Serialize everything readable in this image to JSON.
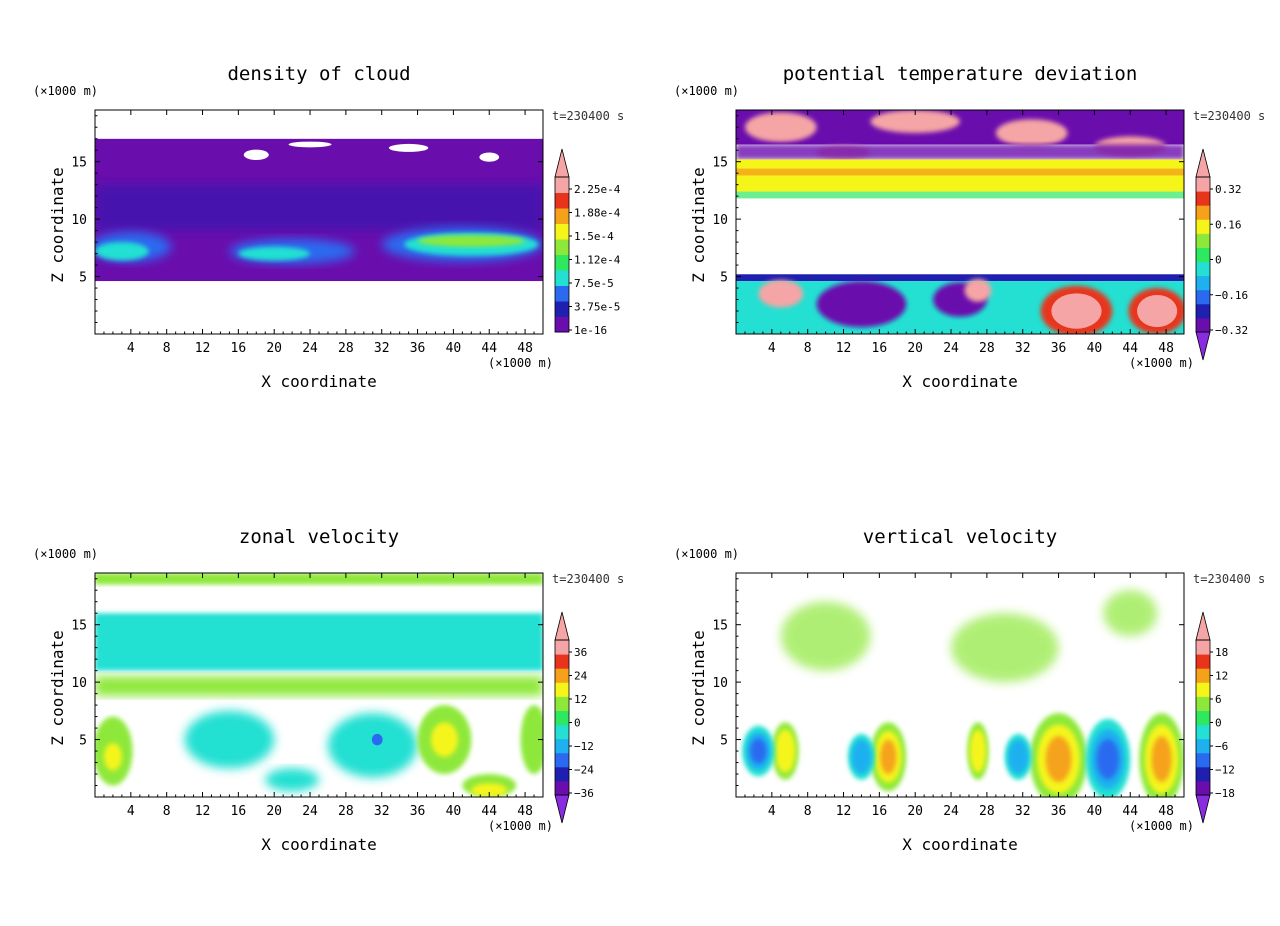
{
  "panels": [
    {
      "title": "density of cloud",
      "xlabel": "X coordinate",
      "ylabel": "Z coordinate",
      "xunit": "(×1000 m)",
      "yunit": "(×1000 m)",
      "time": "t=230400 s",
      "field": "cloud",
      "xticks": [
        "4",
        "8",
        "12",
        "16",
        "20",
        "24",
        "28",
        "32",
        "36",
        "40",
        "44",
        "48"
      ],
      "yticks": [
        "5",
        "10",
        "15"
      ],
      "colorbar": {
        "labels": [
          "1e-16",
          "3.75e-5",
          "7.5e-5",
          "1.12e-4",
          "1.5e-4",
          "1.88e-4",
          "2.25e-4"
        ],
        "extend_min": false,
        "extend_max": true
      }
    },
    {
      "title": "potential temperature deviation",
      "xlabel": "X coordinate",
      "ylabel": "Z coordinate",
      "xunit": "(×1000 m)",
      "yunit": "(×1000 m)",
      "time": "t=230400 s",
      "field": "theta",
      "xticks": [
        "4",
        "8",
        "12",
        "16",
        "20",
        "24",
        "28",
        "32",
        "36",
        "40",
        "44",
        "48"
      ],
      "yticks": [
        "5",
        "10",
        "15"
      ],
      "colorbar": {
        "labels": [
          "−0.32",
          "−0.16",
          "0",
          "0.16",
          "0.32"
        ],
        "extend_min": true,
        "extend_max": true
      }
    },
    {
      "title": "zonal velocity",
      "xlabel": "X coordinate",
      "ylabel": "Z coordinate",
      "xunit": "(×1000 m)",
      "yunit": "(×1000 m)",
      "time": "t=230400 s",
      "field": "u",
      "xticks": [
        "4",
        "8",
        "12",
        "16",
        "20",
        "24",
        "28",
        "32",
        "36",
        "40",
        "44",
        "48"
      ],
      "yticks": [
        "5",
        "10",
        "15"
      ],
      "colorbar": {
        "labels": [
          "−36",
          "−24",
          "−12",
          "0",
          "12",
          "24",
          "36"
        ],
        "extend_min": true,
        "extend_max": true
      }
    },
    {
      "title": "vertical velocity",
      "xlabel": "X coordinate",
      "ylabel": "Z coordinate",
      "xunit": "(×1000 m)",
      "yunit": "(×1000 m)",
      "time": "t=230400 s",
      "field": "w",
      "xticks": [
        "4",
        "8",
        "12",
        "16",
        "20",
        "24",
        "28",
        "32",
        "36",
        "40",
        "44",
        "48"
      ],
      "yticks": [
        "5",
        "10",
        "15"
      ],
      "colorbar": {
        "labels": [
          "−18",
          "−12",
          "−6",
          "0",
          "6",
          "12",
          "18"
        ],
        "extend_min": true,
        "extend_max": true
      }
    }
  ],
  "chart_data": [
    {
      "type": "heatmap",
      "title": "density of cloud",
      "xlabel": "X coordinate",
      "ylabel": "Z coordinate",
      "xlim": [
        0,
        50
      ],
      "ylim": [
        0,
        19.5
      ],
      "xticks": [
        4,
        8,
        12,
        16,
        20,
        24,
        28,
        32,
        36,
        40,
        44,
        48
      ],
      "yticks": [
        5,
        10,
        15
      ],
      "colorbar_levels": [
        "1e-16",
        "3.75e-5",
        "7.5e-5",
        "1.12e-4",
        "1.5e-4",
        "1.88e-4",
        "2.25e-4"
      ],
      "description_of_values": {
        "cloud_layer_z_range": [
          4.5,
          17
        ],
        "max_density_z_range": [
          5.5,
          9
        ],
        "max_density_x_ranges": [
          [
            0,
            8
          ],
          [
            32,
            50
          ]
        ],
        "clear_air": "below z=4.5 and above z=17"
      }
    },
    {
      "type": "heatmap",
      "title": "potential temperature deviation",
      "xlabel": "X coordinate",
      "ylabel": "Z coordinate",
      "xlim": [
        0,
        50
      ],
      "ylim": [
        0,
        19.5
      ],
      "xticks": [
        4,
        8,
        12,
        16,
        20,
        24,
        28,
        32,
        36,
        40,
        44,
        48
      ],
      "yticks": [
        5,
        10,
        15
      ],
      "colorbar_levels": [
        -0.32,
        -0.16,
        0,
        0.16,
        0.32
      ],
      "description_of_values": {
        "near_zero_band_z_range": [
          5,
          12
        ],
        "positive_band_z_range": [
          12.5,
          14.5
        ],
        "warm_anomalies_x_near_surface": [
          35,
          48
        ]
      }
    },
    {
      "type": "heatmap",
      "title": "zonal velocity",
      "xlabel": "X coordinate",
      "ylabel": "Z coordinate",
      "xlim": [
        0,
        50
      ],
      "ylim": [
        0,
        19.5
      ],
      "xticks": [
        4,
        8,
        12,
        16,
        20,
        24,
        28,
        32,
        36,
        40,
        44,
        48
      ],
      "yticks": [
        5,
        10,
        15
      ],
      "colorbar_levels": [
        -36,
        -24,
        -12,
        0,
        12,
        24,
        36
      ],
      "description_of_values": {
        "negative_band_z_range": [
          11,
          16
        ],
        "positive_band_z_range": [
          8.5,
          10.5
        ],
        "positive_lobes_x_near_surface": [
          2,
          38,
          44,
          48
        ]
      }
    },
    {
      "type": "heatmap",
      "title": "vertical velocity",
      "xlabel": "X coordinate",
      "ylabel": "Z coordinate",
      "xlim": [
        0,
        50
      ],
      "ylim": [
        0,
        19.5
      ],
      "xticks": [
        4,
        8,
        12,
        16,
        20,
        24,
        28,
        32,
        36,
        40,
        44,
        48
      ],
      "yticks": [
        5,
        10,
        15
      ],
      "colorbar_levels": [
        -18,
        -12,
        -6,
        0,
        6,
        12,
        18
      ],
      "description_of_values": {
        "updraft_cells_x": [
          5,
          17,
          27,
          36,
          48
        ],
        "downdraft_cells_x": [
          2.5,
          14,
          31,
          41.5
        ],
        "cell_z_range": [
          0.5,
          8
        ]
      }
    }
  ]
}
